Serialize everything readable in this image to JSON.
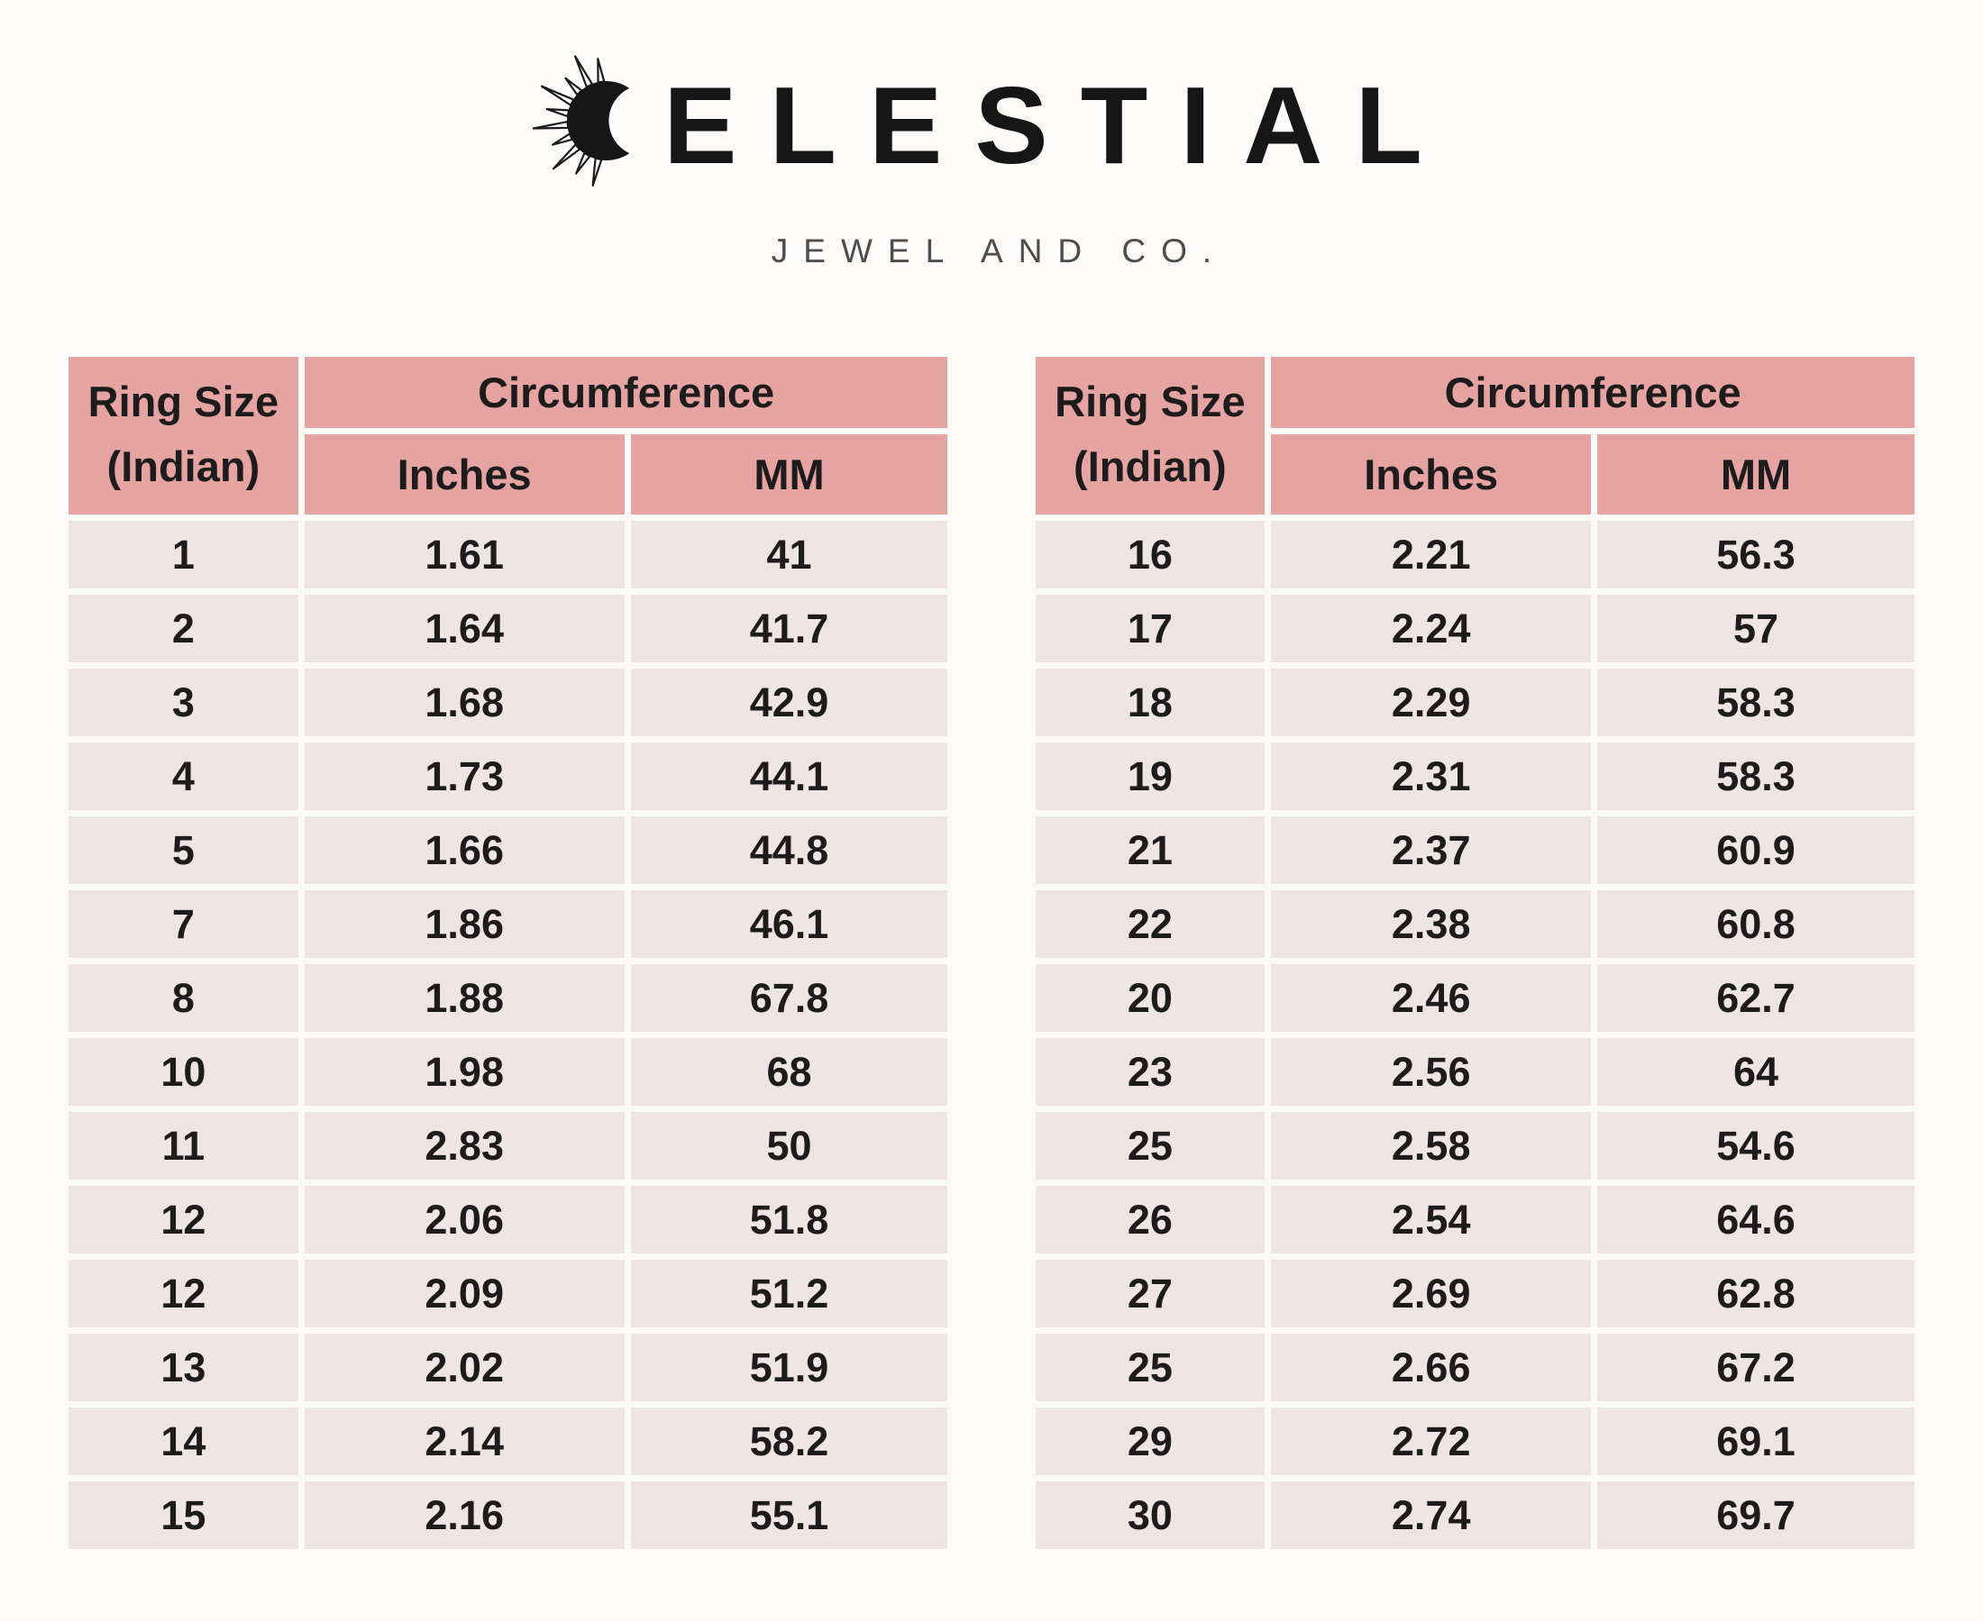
{
  "brand": {
    "name": "CELESTIAL",
    "wordmark_text": "ELESTIAL",
    "tagline": "JEWEL AND CO.",
    "logo_icon": "sun-crescent-icon"
  },
  "table_header": {
    "col1_line1": "Ring Size",
    "col1_line2": "(Indian)",
    "group_label": "Circumference",
    "sub_col1": "Inches",
    "sub_col2": "MM"
  },
  "colors": {
    "header_bg": "#e5a3a2",
    "row_bg": "#efe5e5",
    "page_bg": "#fcfbfa",
    "text": "#1d1b1b",
    "tagline_text": "#4d4d4d",
    "logo_ink": "#161616"
  },
  "chart_data": [
    {
      "type": "table",
      "title": "Ring size chart — left table",
      "columns": [
        "Ring Size (Indian)",
        "Circumference Inches",
        "Circumference MM"
      ],
      "rows": [
        [
          "1",
          "1.61",
          "41"
        ],
        [
          "2",
          "1.64",
          "41.7"
        ],
        [
          "3",
          "1.68",
          "42.9"
        ],
        [
          "4",
          "1.73",
          "44.1"
        ],
        [
          "5",
          "1.66",
          "44.8"
        ],
        [
          "7",
          "1.86",
          "46.1"
        ],
        [
          "8",
          "1.88",
          "67.8"
        ],
        [
          "10",
          "1.98",
          "68"
        ],
        [
          "11",
          "2.83",
          "50"
        ],
        [
          "12",
          "2.06",
          "51.8"
        ],
        [
          "12",
          "2.09",
          "51.2"
        ],
        [
          "13",
          "2.02",
          "51.9"
        ],
        [
          "14",
          "2.14",
          "58.2"
        ],
        [
          "15",
          "2.16",
          "55.1"
        ]
      ]
    },
    {
      "type": "table",
      "title": "Ring size chart — right table",
      "columns": [
        "Ring Size (Indian)",
        "Circumference Inches",
        "Circumference MM"
      ],
      "rows": [
        [
          "16",
          "2.21",
          "56.3"
        ],
        [
          "17",
          "2.24",
          "57"
        ],
        [
          "18",
          "2.29",
          "58.3"
        ],
        [
          "19",
          "2.31",
          "58.3"
        ],
        [
          "21",
          "2.37",
          "60.9"
        ],
        [
          "22",
          "2.38",
          "60.8"
        ],
        [
          "20",
          "2.46",
          "62.7"
        ],
        [
          "23",
          "2.56",
          "64"
        ],
        [
          "25",
          "2.58",
          "54.6"
        ],
        [
          "26",
          "2.54",
          "64.6"
        ],
        [
          "27",
          "2.69",
          "62.8"
        ],
        [
          "25",
          "2.66",
          "67.2"
        ],
        [
          "29",
          "2.72",
          "69.1"
        ],
        [
          "30",
          "2.74",
          "69.7"
        ]
      ]
    }
  ]
}
